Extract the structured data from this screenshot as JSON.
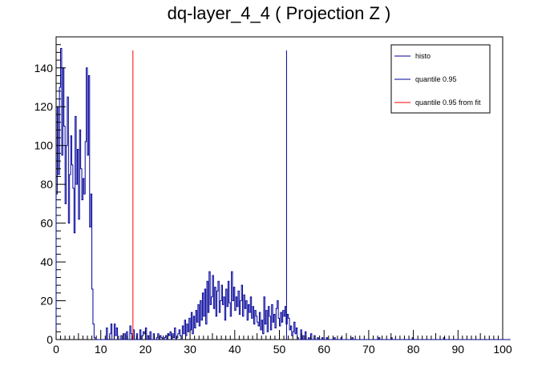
{
  "chart_data": {
    "type": "histogram",
    "title": "dq-layer_4_4 ( Projection Z )",
    "xlabel": "",
    "ylabel": "",
    "xlim": [
      0,
      100
    ],
    "ylim": [
      0,
      156
    ],
    "x_ticks": [
      0,
      10,
      20,
      30,
      40,
      50,
      60,
      70,
      80,
      90,
      100
    ],
    "y_ticks": [
      0,
      20,
      40,
      60,
      80,
      100,
      120,
      140
    ],
    "grid": false,
    "legend_position": "top-right",
    "bin_width": 0.25,
    "series": [
      {
        "name": "histo",
        "color": "#000099",
        "x_start": 0,
        "values": [
          75,
          120,
          85,
          130,
          150,
          95,
          140,
          110,
          70,
          100,
          125,
          60,
          85,
          105,
          90,
          78,
          55,
          115,
          80,
          98,
          62,
          108,
          88,
          72,
          83,
          75,
          102,
          140,
          95,
          136,
          58,
          75,
          26,
          8,
          1,
          0,
          0,
          0,
          0,
          0,
          0,
          0,
          0,
          0,
          0,
          6,
          0,
          0,
          3,
          8,
          0,
          0,
          8,
          2,
          6,
          0,
          0,
          0,
          2,
          0,
          0,
          3,
          0,
          4,
          0,
          0,
          7,
          3,
          0,
          5,
          0,
          0,
          3,
          0,
          0,
          5,
          0,
          2,
          4,
          3,
          6,
          0,
          2,
          0,
          4,
          0,
          0,
          3,
          0,
          0,
          1,
          3,
          0,
          2,
          1,
          0,
          0,
          1,
          2,
          0,
          3,
          2,
          4,
          0,
          3,
          1,
          6,
          0,
          1,
          3,
          5,
          2,
          0,
          7,
          3,
          10,
          2,
          8,
          4,
          11,
          5,
          14,
          3,
          12,
          6,
          15,
          9,
          18,
          7,
          20,
          10,
          24,
          12,
          26,
          8,
          30,
          14,
          35,
          18,
          22,
          33,
          16,
          27,
          12,
          25,
          30,
          14,
          20,
          28,
          18,
          22,
          10,
          26,
          17,
          30,
          19,
          12,
          35,
          20,
          27,
          15,
          22,
          17,
          25,
          13,
          20,
          28,
          12,
          23,
          16,
          20,
          10,
          18,
          14,
          22,
          11,
          17,
          8,
          15,
          12,
          9,
          7,
          14,
          5,
          10,
          3,
          22,
          8,
          15,
          4,
          17,
          12,
          5,
          18,
          9,
          13,
          6,
          16,
          20,
          11,
          7,
          14,
          9,
          15,
          12,
          17,
          8,
          13,
          11,
          5,
          7,
          2,
          4,
          9,
          3,
          6,
          1,
          0,
          0,
          5,
          0,
          2,
          0,
          4,
          0,
          0,
          1,
          0,
          3,
          0,
          0,
          2,
          0,
          0,
          1,
          0,
          0,
          0,
          1,
          0,
          0,
          0,
          1,
          0,
          0,
          0,
          0,
          0,
          0,
          1,
          0,
          0,
          0,
          0,
          0,
          1,
          0,
          0,
          0,
          0,
          0,
          0,
          0,
          0,
          0,
          1,
          0,
          0,
          0,
          0,
          0,
          0,
          0,
          0,
          0,
          0,
          0,
          0,
          0,
          0,
          0,
          0,
          0,
          0,
          0,
          0,
          0,
          0,
          0,
          1,
          0,
          0,
          0,
          0,
          0,
          0,
          0,
          0,
          0,
          0,
          1,
          0,
          0,
          0,
          0,
          0,
          0,
          0,
          0,
          0,
          0,
          0,
          0,
          0,
          0,
          0,
          0,
          0,
          0,
          1,
          0,
          0,
          0,
          0,
          0,
          0,
          0,
          0,
          0,
          0,
          0,
          0,
          0,
          0,
          0,
          0,
          0,
          0,
          0,
          0,
          0,
          0,
          0,
          0,
          0,
          0,
          0,
          1,
          0,
          0,
          0,
          0,
          0,
          0,
          0,
          0,
          0,
          0,
          0,
          0,
          0,
          0,
          0,
          0,
          0,
          0,
          0,
          0,
          0,
          0,
          0,
          0,
          0,
          0,
          0,
          0,
          0,
          0,
          0,
          0,
          0,
          0,
          0,
          0,
          0,
          0,
          0,
          0,
          0,
          0,
          0,
          0,
          0,
          0,
          0,
          0,
          0,
          0,
          0,
          0,
          0,
          0,
          0,
          0,
          0,
          0,
          0
        ]
      },
      {
        "name": "quantile 0.95",
        "type": "vline",
        "color": "#000099",
        "x": 51.6,
        "y_top": 149
      },
      {
        "name": "quantile 0.95 from fit",
        "type": "vline",
        "color": "#ff0000",
        "x": 17.2,
        "y_top": 149
      }
    ]
  }
}
